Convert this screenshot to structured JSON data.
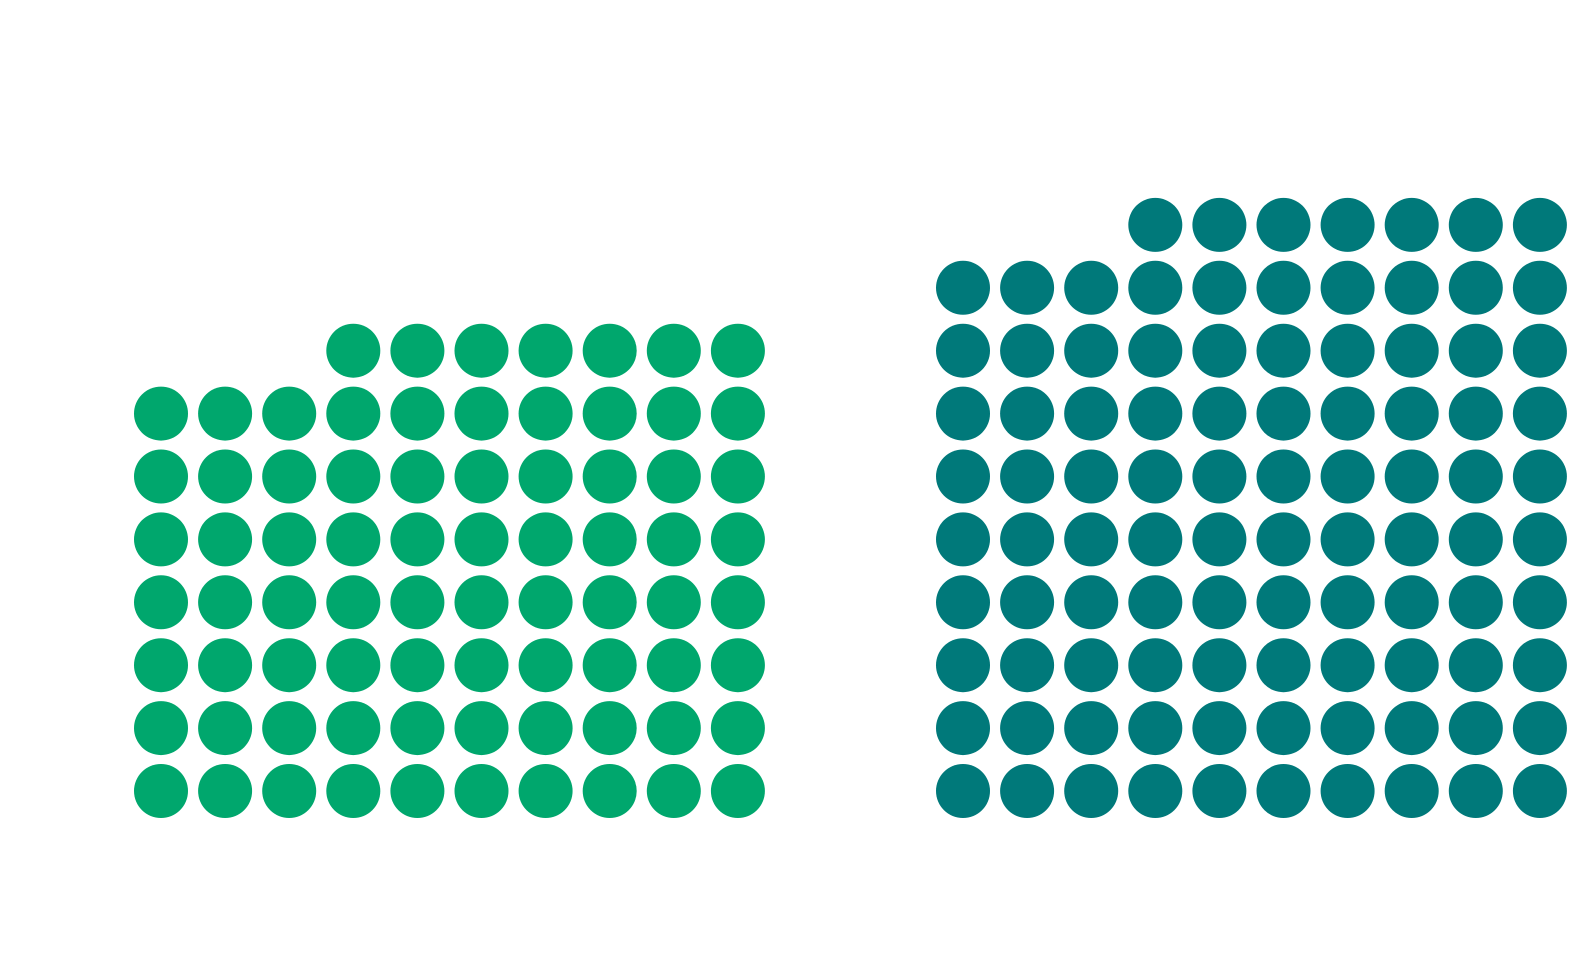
{
  "chart_data": [
    {
      "type": "dotmatrix",
      "value": 77,
      "color": "#00a76d"
    },
    {
      "type": "dotmatrix",
      "value": 97,
      "color": "#00797a"
    }
  ]
}
